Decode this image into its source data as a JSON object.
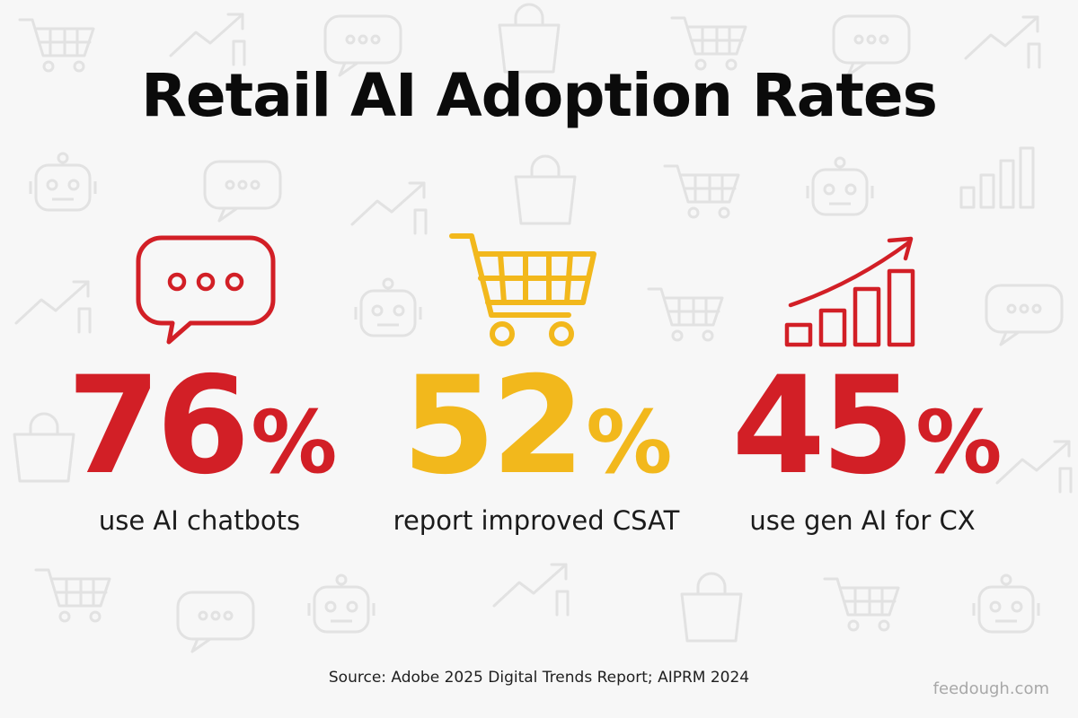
{
  "title": "Retail AI Adoption Rates",
  "colors": {
    "red": "#d21f26",
    "yellow": "#f2b81c",
    "text": "#0b0b0b",
    "background": "#f7f7f7"
  },
  "stats": [
    {
      "value": "76",
      "unit": "%",
      "label": "use AI chatbots",
      "icon": "chat-bubble-icon",
      "color": "#d21f26"
    },
    {
      "value": "52",
      "unit": "%",
      "label": "report improved CSAT",
      "icon": "shopping-cart-icon",
      "color": "#f2b81c"
    },
    {
      "value": "45",
      "unit": "%",
      "label": "use gen AI for CX",
      "icon": "growth-chart-icon",
      "color": "#d21f26"
    }
  ],
  "background_icons": [
    "shopping-cart-icon",
    "trend-arrow-icon",
    "chat-bubble-icon",
    "shopping-bag-icon",
    "robot-icon",
    "bar-chart-icon"
  ],
  "source": "Source: Adobe 2025 Digital Trends Report; AIPRM 2024",
  "brand": "feedough.com"
}
